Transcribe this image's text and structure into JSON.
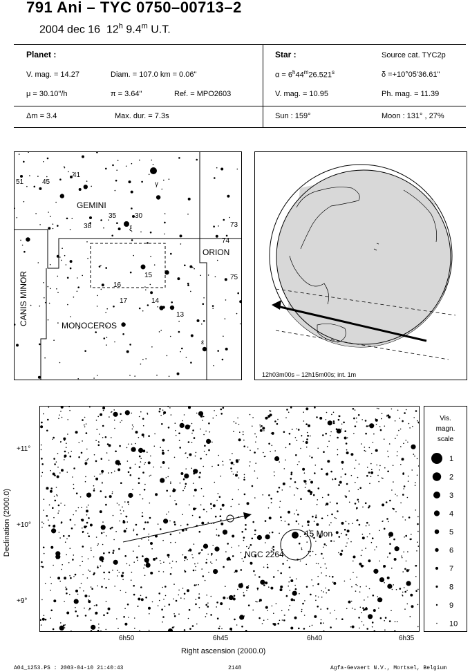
{
  "header": {
    "title": "791 Ani  –  TYC 0750–00713–2",
    "date": "2004 dec 16",
    "time_h": "12",
    "time_h_unit": "h",
    "time_m": "9.4",
    "time_m_unit": "m",
    "time_suffix": "U.T."
  },
  "planet": {
    "heading": "Planet :",
    "vmag": "V. mag. = 14.27",
    "diam": "Diam. = 107.0 km = 0.06\"",
    "mu": "μ =  30.10\"/h",
    "pi": "π =  3.64\"",
    "ref": "Ref. = MPO2603"
  },
  "star": {
    "heading": "Star :",
    "source": "Source cat.  TYC2p",
    "alpha_prefix": "α =  6",
    "alpha_h": "h",
    "alpha_mid": "44",
    "alpha_m": "m",
    "alpha_s": "26.521",
    "alpha_sunit": "s",
    "delta": "δ =+10°05'36.61\"",
    "vmag": "V. mag. = 10.95",
    "phmag": "Ph. mag. = 11.39"
  },
  "summary": {
    "dm": "Δm = 3.4",
    "maxdur": "Max. dur. = 7.3s",
    "sun": "Sun : 159°",
    "moon": "Moon : 131° , 27%"
  },
  "constellation_map": {
    "labels": {
      "gemini": "GEMINI",
      "orion": "ORION",
      "canis_minor": "CANIS MINOR",
      "monoceros": "MONOCEROS"
    },
    "star_labels": [
      "51",
      "45",
      "41",
      "γ",
      "35",
      "30",
      "38",
      "ξ",
      "73",
      "74",
      "75",
      "15",
      "16",
      "17",
      "14",
      "13",
      "ε"
    ]
  },
  "globe_panel": {
    "caption": "12h03m00s – 12h15m00s; int.  1m"
  },
  "detail_map": {
    "yticks": [
      "+11°",
      "+10°",
      "+9°"
    ],
    "xticks": [
      "6h50",
      "6h45",
      "6h40",
      "6h35"
    ],
    "ylabel": "Declination (2000.0)",
    "xlabel": "Right ascension (2000.0)",
    "labels": {
      "star15": "15 Mon",
      "cluster": "NGC 2264"
    }
  },
  "mag_scale": {
    "title_lines": [
      "Vis.",
      "magn.",
      "scale"
    ],
    "values": [
      "1",
      "2",
      "3",
      "4",
      "5",
      "6",
      "7",
      "8",
      "9",
      "10"
    ]
  },
  "footer": {
    "file": "A04_1253.PS : 2003-04-10 21:40:43",
    "number": "2148",
    "credit": "Agfa-Gevaert N.V., Mortsel, Belgium"
  }
}
